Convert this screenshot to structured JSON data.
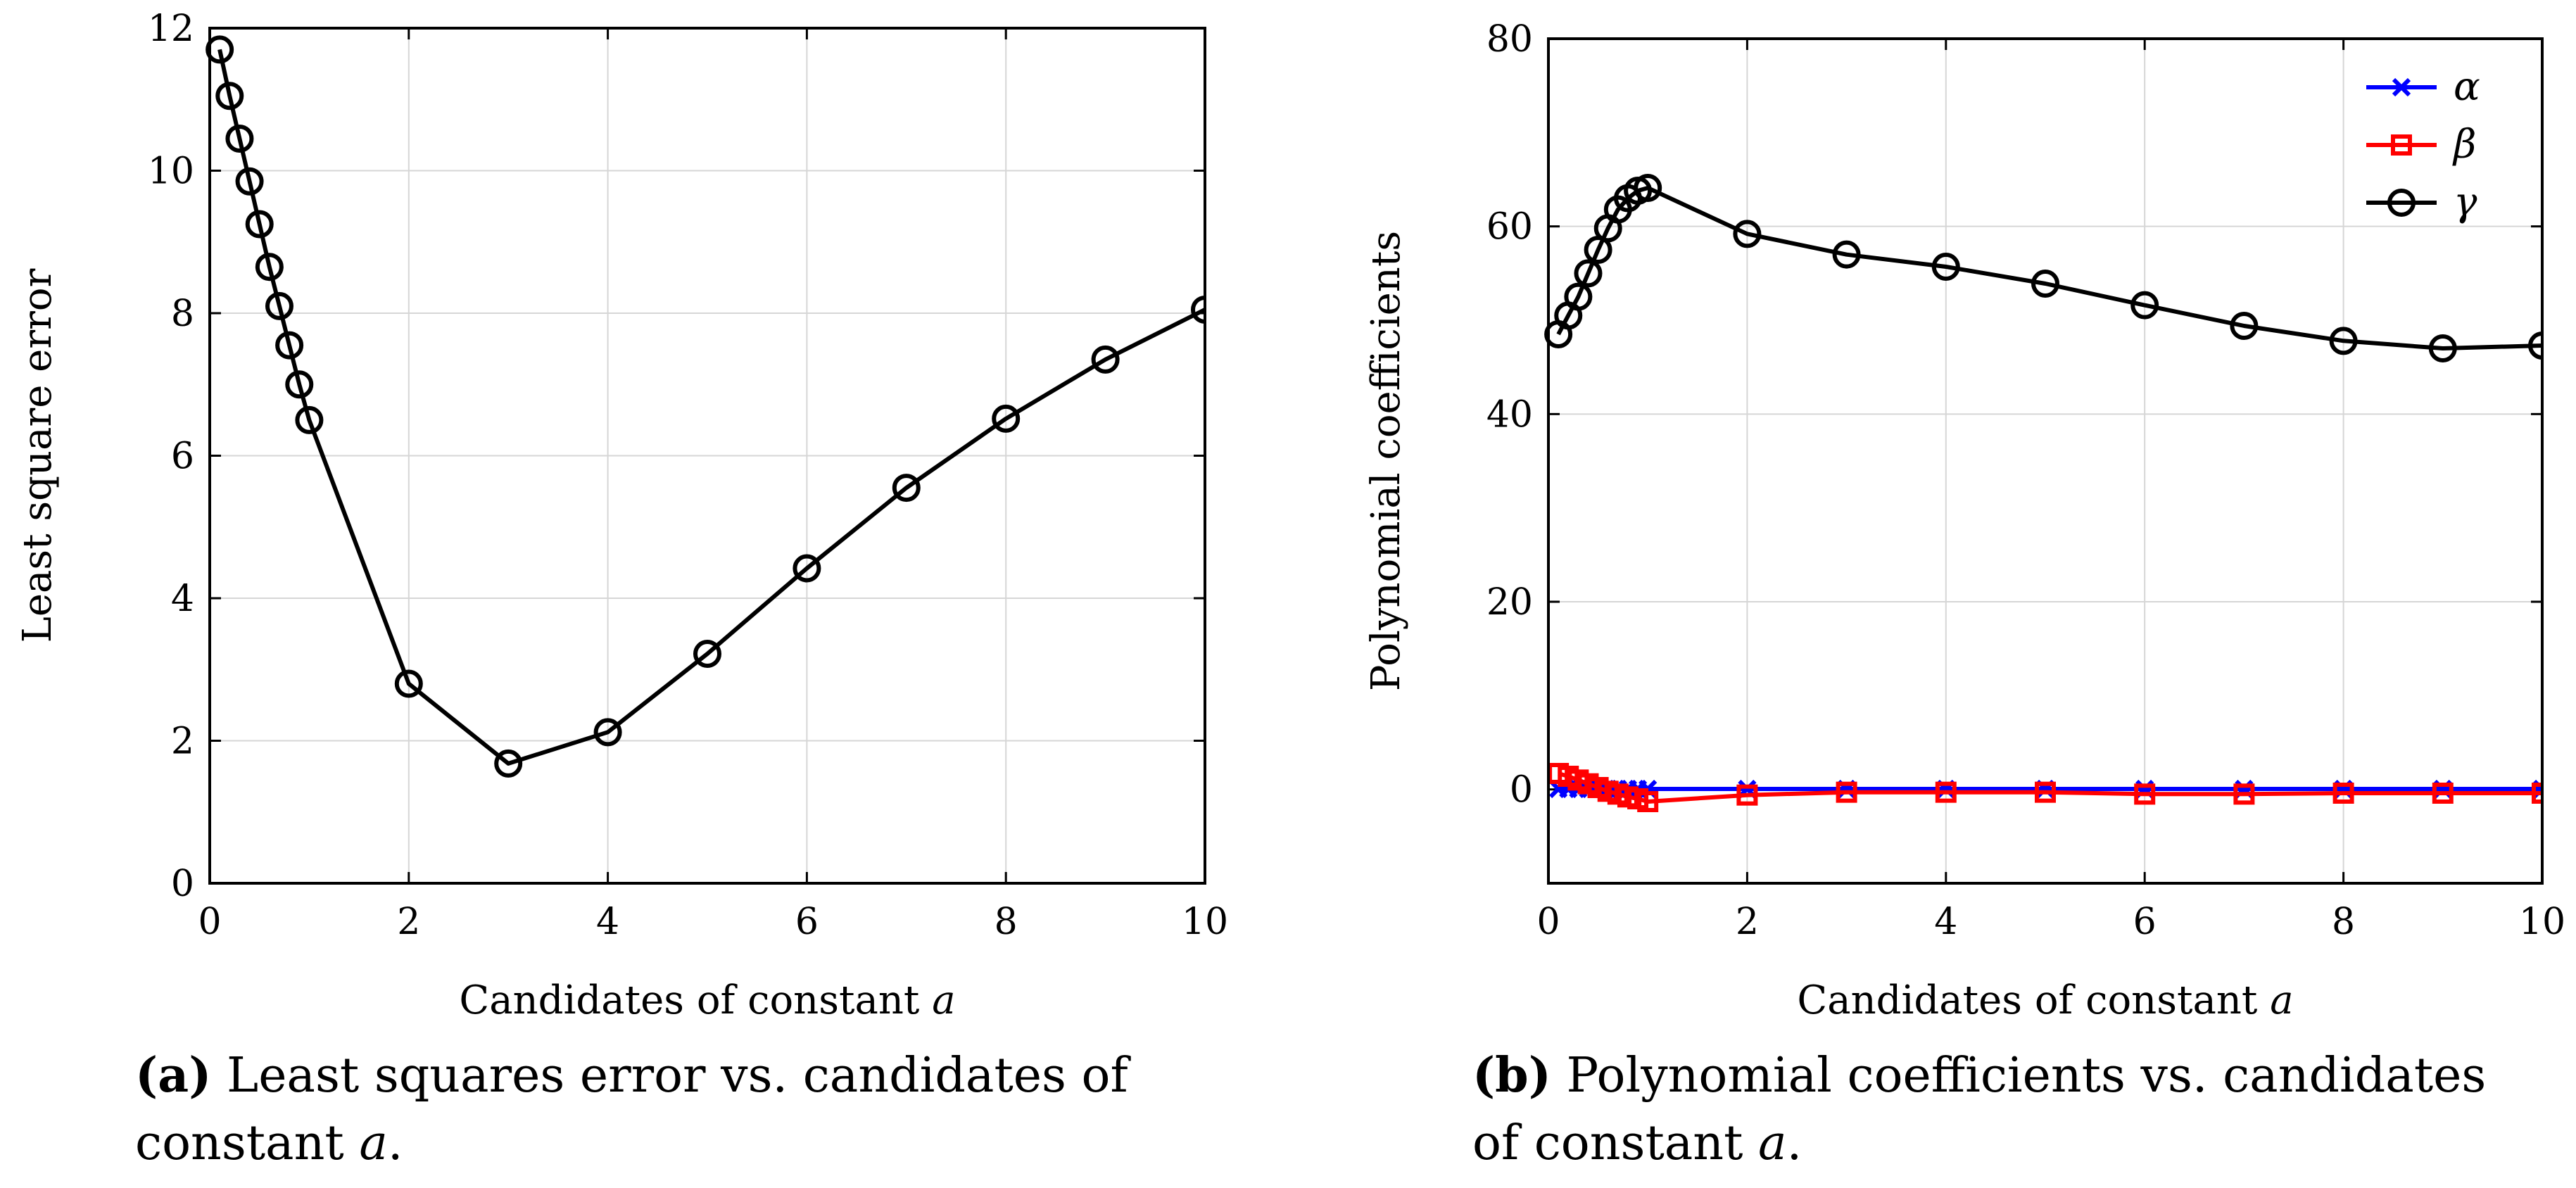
{
  "chart_data": [
    {
      "type": "line",
      "id": "a",
      "xlabel": "Candidates of constant a",
      "ylabel": "Least square error",
      "xlim": [
        0,
        10
      ],
      "ylim": [
        0,
        12
      ],
      "xticks": [
        "0",
        "2",
        "4",
        "6",
        "8",
        "10"
      ],
      "xtick_values": [
        0,
        2,
        4,
        6,
        8,
        10
      ],
      "yticks": [
        "0",
        "2",
        "4",
        "6",
        "8",
        "10",
        "12"
      ],
      "ytick_values": [
        0,
        2,
        4,
        6,
        8,
        10,
        12
      ],
      "grid": true,
      "series": [
        {
          "name": "Least square error",
          "color": "#000000",
          "marker": "circle",
          "x": [
            0.1,
            0.2,
            0.3,
            0.4,
            0.5,
            0.6,
            0.7,
            0.8,
            0.9,
            1,
            2,
            3,
            4,
            5,
            6,
            7,
            8,
            9,
            10
          ],
          "y": [
            11.7,
            11.05,
            10.45,
            9.85,
            9.25,
            8.65,
            8.1,
            7.55,
            7.0,
            6.5,
            2.8,
            1.68,
            2.12,
            3.22,
            4.42,
            5.55,
            6.52,
            7.35,
            8.05
          ]
        }
      ]
    },
    {
      "type": "line",
      "id": "b",
      "xlabel": "Candidates of constant a",
      "ylabel": "Polynomial coefficients",
      "xlim": [
        0,
        10
      ],
      "ylim": [
        -10,
        80
      ],
      "xticks": [
        "0",
        "2",
        "4",
        "6",
        "8",
        "10"
      ],
      "xtick_values": [
        0,
        2,
        4,
        6,
        8,
        10
      ],
      "yticks": [
        "0",
        "20",
        "40",
        "60",
        "80"
      ],
      "ytick_values": [
        0,
        20,
        40,
        60,
        80
      ],
      "grid": true,
      "legend": "top-right",
      "series": [
        {
          "name": "α",
          "color": "#0000ff",
          "marker": "x",
          "x": [
            0.1,
            0.2,
            0.3,
            0.4,
            0.5,
            0.6,
            0.7,
            0.8,
            0.9,
            1,
            2,
            3,
            4,
            5,
            6,
            7,
            8,
            9,
            10
          ],
          "y": [
            0.05,
            0.05,
            0.05,
            0.05,
            0.05,
            0.05,
            0.05,
            0.05,
            0.05,
            0.05,
            0.05,
            0.05,
            0.05,
            0.05,
            0.05,
            0.05,
            0.05,
            0.05,
            0.05
          ]
        },
        {
          "name": "β",
          "color": "#ff0000",
          "marker": "square",
          "x": [
            0.1,
            0.2,
            0.3,
            0.4,
            0.5,
            0.6,
            0.7,
            0.8,
            0.9,
            1,
            2,
            3,
            4,
            5,
            6,
            7,
            8,
            9,
            10
          ],
          "y": [
            1.7,
            1.4,
            1.0,
            0.6,
            0.2,
            -0.2,
            -0.5,
            -0.8,
            -1.0,
            -1.3,
            -0.6,
            -0.3,
            -0.3,
            -0.3,
            -0.5,
            -0.5,
            -0.4,
            -0.4,
            -0.4
          ]
        },
        {
          "name": "γ",
          "color": "#000000",
          "marker": "circle",
          "x": [
            0.1,
            0.2,
            0.3,
            0.4,
            0.5,
            0.6,
            0.7,
            0.8,
            0.9,
            1,
            2,
            3,
            4,
            5,
            6,
            7,
            8,
            9,
            10
          ],
          "y": [
            48.5,
            50.5,
            52.5,
            55.0,
            57.5,
            59.8,
            61.8,
            63.0,
            63.8,
            64.1,
            59.2,
            57.0,
            55.7,
            53.9,
            51.6,
            49.4,
            47.8,
            47.0,
            47.3
          ]
        }
      ]
    }
  ],
  "captions": {
    "a": {
      "label": "(a)",
      "text": " Least squares error vs.  candidates of constant a."
    },
    "b": {
      "label": "(b)",
      "text": " Polynomial coefficients vs. candidates of constant a."
    }
  }
}
